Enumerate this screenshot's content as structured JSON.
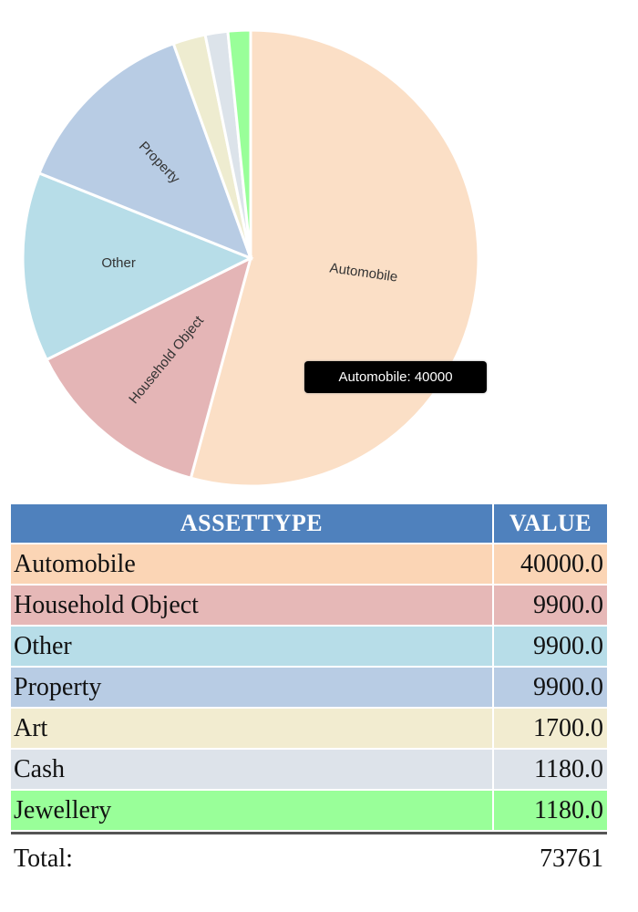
{
  "chart_data": {
    "type": "pie",
    "categories": [
      "Automobile",
      "Household Object",
      "Other",
      "Property",
      "Art",
      "Cash",
      "Jewellery"
    ],
    "values": [
      40000,
      9900,
      9900,
      9900,
      1700,
      1180,
      1180
    ],
    "colors": [
      "#fbdfc6",
      "#e4b5b6",
      "#b7dde8",
      "#b8cce4",
      "#eeecd0",
      "#dce3ea",
      "#99ff99"
    ],
    "slice_labels": [
      "Automobile",
      "Household Object",
      "Other",
      "Property",
      "",
      "",
      ""
    ],
    "tooltip": "Automobile: 40000",
    "start_angle_deg": 0,
    "direction": "clockwise"
  },
  "table": {
    "headers": [
      "ASSETTYPE",
      "VALUE"
    ],
    "header_color": "#4f81bd",
    "rows": [
      {
        "type": "Automobile",
        "value": "40000.0",
        "color": "#fbd5b5"
      },
      {
        "type": "Household Object",
        "value": "9900.0",
        "color": "#e6b8b7"
      },
      {
        "type": "Other",
        "value": "9900.0",
        "color": "#b7dde8"
      },
      {
        "type": "Property",
        "value": "9900.0",
        "color": "#b8cce4"
      },
      {
        "type": "Art",
        "value": "1700.0",
        "color": "#f2ecd0"
      },
      {
        "type": "Cash",
        "value": "1180.0",
        "color": "#dde3ea"
      },
      {
        "type": "Jewellery",
        "value": "1180.0",
        "color": "#99ff99"
      }
    ],
    "total_label": "Total:",
    "total_value": "73761"
  }
}
